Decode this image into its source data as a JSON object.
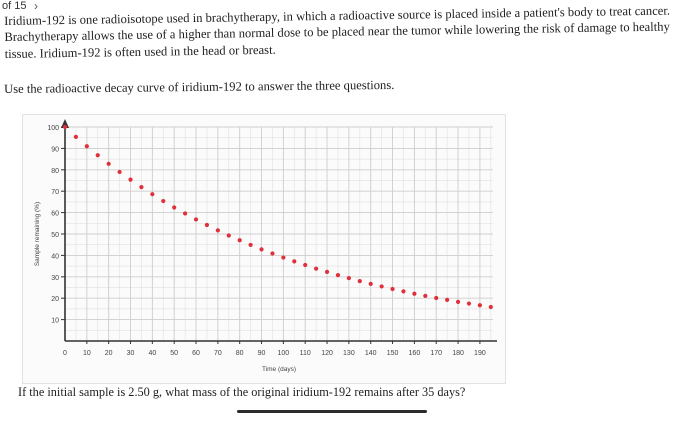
{
  "topbar": {
    "crumb": "of 15",
    "chev": "›"
  },
  "intro": {
    "paragraph": "Iridium-192 is one radioisotope used in brachytherapy, in which a radioactive source is placed inside a patient's body to treat cancer. Brachytherapy allows the use of a higher than normal dose to be placed near the tumor while lowering the risk of damage to healthy tissue. Iridium-192 is often used in the head or breast.",
    "instruction": "Use the radioactive decay curve of iridium-192 to answer the three questions."
  },
  "question": {
    "text": "If the initial sample is 2.50 g, what mass of the original iridium-192 remains after 35 days?"
  },
  "chart_data": {
    "type": "scatter",
    "xlabel": "Time (days)",
    "ylabel": "Sample remaining (%)",
    "xlim": [
      0,
      190
    ],
    "ylim": [
      0,
      100
    ],
    "xticks": [
      0,
      10,
      20,
      30,
      40,
      50,
      60,
      70,
      80,
      90,
      100,
      110,
      120,
      130,
      140,
      150,
      160,
      170,
      180,
      190
    ],
    "yticks": [
      10,
      20,
      30,
      40,
      50,
      60,
      70,
      80,
      90,
      100
    ],
    "grid": true,
    "point_color": "#e0303a",
    "x": [
      0,
      5,
      10,
      15,
      20,
      25,
      30,
      35,
      40,
      45,
      50,
      55,
      60,
      65,
      70,
      75,
      80,
      85,
      90,
      95,
      100,
      105,
      110,
      115,
      120,
      125,
      130,
      135,
      140,
      145,
      150,
      155,
      160,
      165,
      170,
      175,
      180,
      185,
      190,
      195
    ],
    "y": [
      100,
      95.4,
      91.0,
      86.8,
      82.8,
      79.0,
      75.4,
      71.9,
      68.6,
      65.4,
      62.4,
      59.6,
      56.8,
      54.2,
      51.7,
      49.3,
      47.1,
      44.9,
      42.8,
      40.9,
      39.0,
      37.2,
      35.5,
      33.8,
      32.3,
      30.8,
      29.4,
      28.0,
      26.7,
      25.5,
      24.3,
      23.2,
      22.1,
      21.1,
      20.1,
      19.2,
      18.3,
      17.5,
      16.7,
      15.9
    ]
  }
}
